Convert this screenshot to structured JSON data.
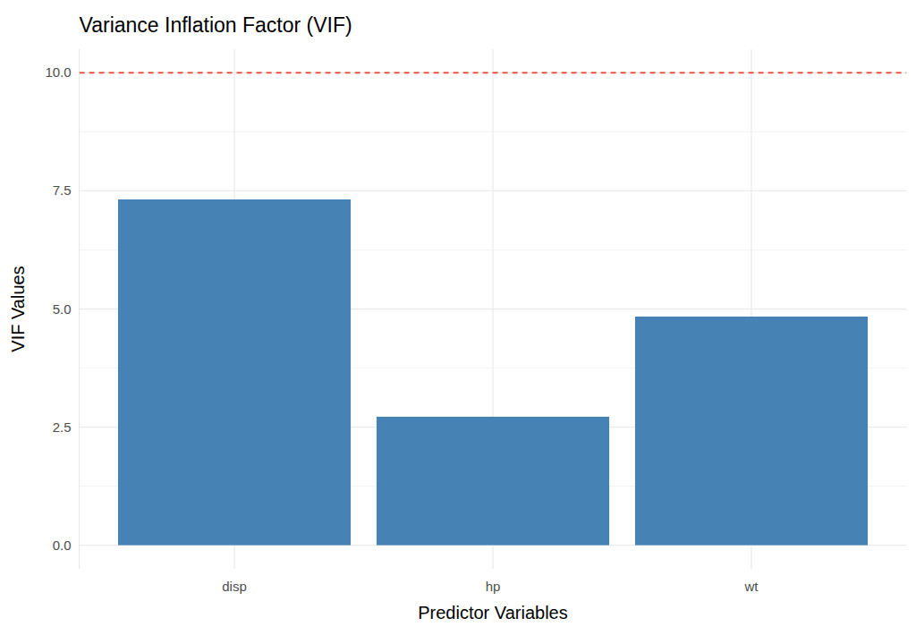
{
  "chart_data": {
    "type": "bar",
    "title": "Variance Inflation Factor (VIF)",
    "x_label": "Predictor Variables",
    "y_label": "VIF Values",
    "categories": [
      "disp",
      "hp",
      "wt"
    ],
    "values": [
      7.32,
      2.72,
      4.84
    ],
    "color": "#4682b4",
    "ylim": [
      -0.5,
      10.5
    ],
    "yticks": [
      {
        "value": 0,
        "label": "0.0"
      },
      {
        "value": 2.5,
        "label": "2.5"
      },
      {
        "value": 5,
        "label": "5.0"
      },
      {
        "value": 7.5,
        "label": "7.5"
      },
      {
        "value": 10,
        "label": "10.0"
      }
    ],
    "grid": true,
    "reference_line": {
      "value": 10,
      "color": "#e8412a",
      "line_style": "dashed"
    }
  }
}
